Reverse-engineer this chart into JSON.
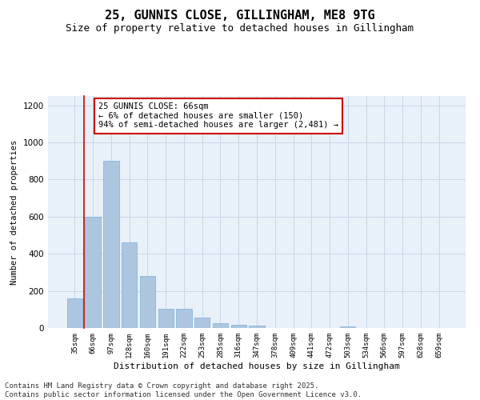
{
  "title": "25, GUNNIS CLOSE, GILLINGHAM, ME8 9TG",
  "subtitle": "Size of property relative to detached houses in Gillingham",
  "xlabel": "Distribution of detached houses by size in Gillingham",
  "ylabel": "Number of detached properties",
  "categories": [
    "35sqm",
    "66sqm",
    "97sqm",
    "128sqm",
    "160sqm",
    "191sqm",
    "222sqm",
    "253sqm",
    "285sqm",
    "316sqm",
    "347sqm",
    "378sqm",
    "409sqm",
    "441sqm",
    "472sqm",
    "503sqm",
    "534sqm",
    "566sqm",
    "597sqm",
    "628sqm",
    "659sqm"
  ],
  "values": [
    160,
    600,
    900,
    460,
    280,
    105,
    105,
    55,
    25,
    18,
    13,
    0,
    0,
    0,
    0,
    8,
    0,
    0,
    0,
    0,
    0
  ],
  "bar_color": "#adc6e0",
  "bar_edgecolor": "#7bafd4",
  "vline_x_index": 1,
  "vline_color": "#cc0000",
  "annotation_text": "25 GUNNIS CLOSE: 66sqm\n← 6% of detached houses are smaller (150)\n94% of semi-detached houses are larger (2,481) →",
  "annotation_box_edgecolor": "#cc0000",
  "ylim": [
    0,
    1250
  ],
  "yticks": [
    0,
    200,
    400,
    600,
    800,
    1000,
    1200
  ],
  "grid_color": "#c8d8e8",
  "background_color": "#e8f0f8",
  "footer": "Contains HM Land Registry data © Crown copyright and database right 2025.\nContains public sector information licensed under the Open Government Licence v3.0.",
  "title_fontsize": 11,
  "subtitle_fontsize": 9,
  "annotation_fontsize": 7.5,
  "footer_fontsize": 6.5,
  "ylabel_fontsize": 7.5,
  "xlabel_fontsize": 8,
  "ytick_fontsize": 7.5,
  "xtick_fontsize": 6.5
}
